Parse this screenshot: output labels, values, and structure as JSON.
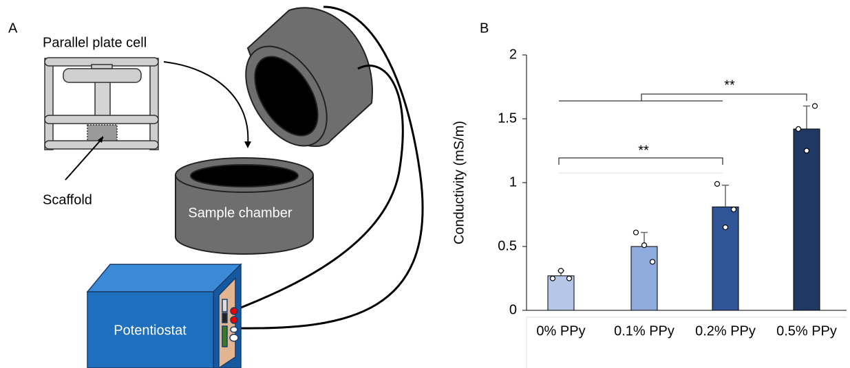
{
  "panel_a": {
    "label": "A",
    "cell_label": "Parallel plate cell",
    "scaffold_label": "Scaffold",
    "chamber_label": "Sample chamber",
    "device_label": "Potentiostat"
  },
  "chart_data": {
    "type": "bar",
    "panel_label": "B",
    "ylabel": "Conductivity (mS/m)",
    "categories": [
      "0% PPy",
      "0.1% PPy",
      "0.2% PPy",
      "0.5% PPy"
    ],
    "values": [
      0.27,
      0.5,
      0.81,
      1.42
    ],
    "errors": [
      0.04,
      0.11,
      0.17,
      0.18
    ],
    "points": [
      [
        0.25,
        0.25,
        0.31
      ],
      [
        0.61,
        0.38,
        0.51
      ],
      [
        0.99,
        0.79,
        0.65
      ],
      [
        1.42,
        1.6,
        1.25
      ]
    ],
    "colors": [
      "#b4c7e7",
      "#8faadc",
      "#2f5597",
      "#1f3864"
    ],
    "ylim": [
      0,
      2
    ],
    "yticks": [
      0,
      0.5,
      1,
      1.5,
      2
    ],
    "grid": false,
    "annotations": [
      "**",
      "**"
    ]
  }
}
